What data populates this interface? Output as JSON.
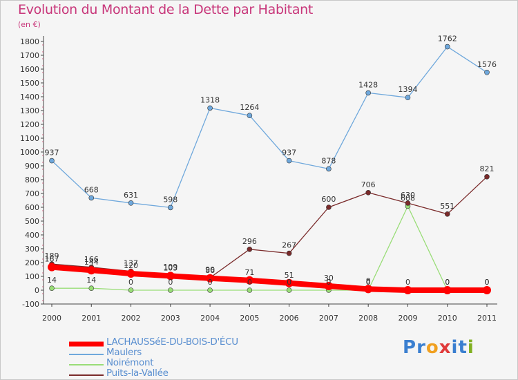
{
  "title": "Evolution du Montant de la Dette par Habitant",
  "subtitle": "(en €)",
  "logo": {
    "text": "Proxiti",
    "letters": [
      "P",
      "r",
      "o",
      "x",
      "i",
      "t",
      "i"
    ],
    "colors": [
      "#3a7fd0",
      "#3a7fd0",
      "#f0a020",
      "#e03a3a",
      "#3a7fd0",
      "#3a7fd0",
      "#80b020"
    ]
  },
  "chart_data": {
    "type": "line",
    "x": [
      "2000",
      "2001",
      "2002",
      "2003",
      "2004",
      "2005",
      "2006",
      "2007",
      "2008",
      "2009",
      "2010",
      "2011"
    ],
    "y_ticks": [
      "-100",
      "0",
      "100",
      "200",
      "300",
      "400",
      "500",
      "600",
      "700",
      "800",
      "900",
      "1000",
      "1100",
      "1200",
      "1300",
      "1400",
      "1500",
      "1600",
      "1700",
      "1800"
    ],
    "ylim": [
      -100,
      1800
    ],
    "grid": false,
    "series": [
      {
        "name": "LACHAUSSéE-DU-BOIS-D'ÉCU",
        "color": "#ff0000",
        "values": [
          167,
          144,
          120,
          103,
          86,
          71,
          51,
          30,
          8,
          0,
          0,
          0
        ],
        "labels": [
          "167",
          "144",
          "120",
          "103",
          "86",
          "71",
          "51",
          "30",
          "8",
          "0",
          "0",
          "0"
        ]
      },
      {
        "name": "Maulers",
        "color": "#6fa8dc",
        "values": [
          937,
          668,
          631,
          598,
          1318,
          1264,
          937,
          878,
          1428,
          1394,
          1762,
          1576
        ],
        "labels": [
          "937",
          "668",
          "631",
          "598",
          "1318",
          "1264",
          "937",
          "878",
          "1428",
          "1394",
          "1762",
          "1576"
        ]
      },
      {
        "name": "Noirémont",
        "color": "#99dd77",
        "values": [
          14,
          14,
          0,
          0,
          0,
          0,
          0,
          0,
          0,
          608,
          0,
          0
        ],
        "labels": [
          "14",
          "14",
          "0",
          "0",
          "0",
          "0",
          "0",
          "0",
          "0",
          "608",
          "0",
          "0"
        ]
      },
      {
        "name": "Puits-la-Vallée",
        "color": "#7a2a2a",
        "values": [
          189,
          166,
          137,
          109,
          90,
          296,
          267,
          600,
          706,
          630,
          551,
          821
        ],
        "labels": [
          "189",
          "166",
          "137",
          "109",
          "90",
          "296",
          "267",
          "600",
          "706",
          "630",
          "551",
          "821"
        ]
      }
    ]
  }
}
